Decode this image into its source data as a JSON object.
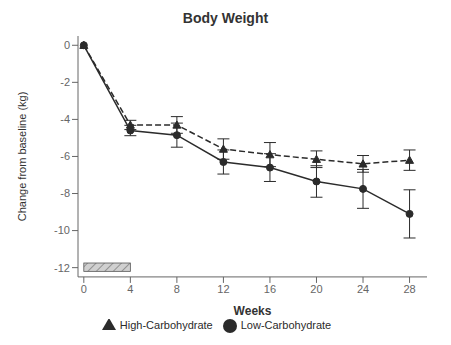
{
  "chart_data": {
    "type": "line",
    "title": "Body Weight",
    "xlabel": "Weeks",
    "ylabel": "Change from baseline (kg)",
    "xlim": [
      -0.5,
      29.5
    ],
    "ylim": [
      -12.5,
      0.5
    ],
    "xticks": [
      0,
      4,
      8,
      12,
      16,
      20,
      24,
      28
    ],
    "yticks": [
      0,
      -2,
      -4,
      -6,
      -8,
      -10,
      -12
    ],
    "grid": false,
    "legend": "bottom",
    "series": [
      {
        "name": "High-Carbohydrate",
        "color": "#2b2b2b",
        "marker": "triangle",
        "line_style": "dashed",
        "x": [
          0,
          4,
          8,
          12,
          16,
          20,
          24,
          28
        ],
        "values": [
          0,
          -4.3,
          -4.3,
          -5.6,
          -5.9,
          -6.15,
          -6.4,
          -6.2
        ],
        "error": [
          0.0,
          0.25,
          0.45,
          0.55,
          0.65,
          0.45,
          0.45,
          0.55
        ]
      },
      {
        "name": "Low-Carbohydrate",
        "color": "#2b2b2b",
        "marker": "circle",
        "line_style": "solid",
        "x": [
          0,
          4,
          8,
          12,
          16,
          20,
          24,
          28
        ],
        "values": [
          0,
          -4.6,
          -4.85,
          -6.3,
          -6.6,
          -7.35,
          -7.75,
          -9.1
        ],
        "error": [
          0.0,
          0.28,
          0.65,
          0.65,
          0.75,
          0.85,
          1.05,
          1.3
        ]
      }
    ],
    "hatch_bar": {
      "x": [
        0,
        4
      ],
      "y": [
        -12.2,
        -11.75
      ]
    }
  }
}
